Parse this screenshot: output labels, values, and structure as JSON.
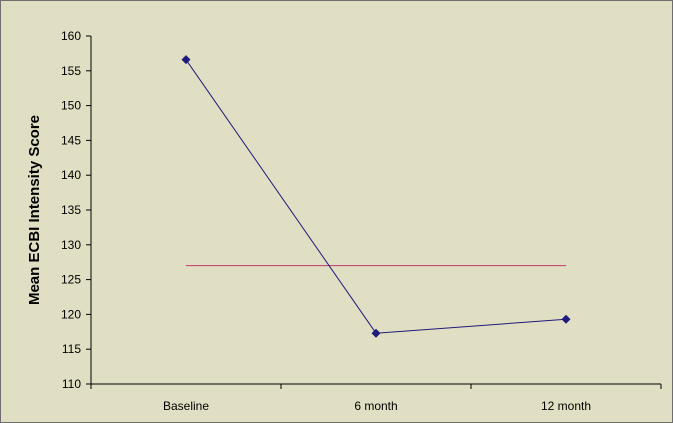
{
  "chart_data": {
    "type": "line",
    "title": "",
    "xlabel": "",
    "ylabel": "Mean ECBI Intensity Score",
    "categories": [
      "Baseline",
      "6 month",
      "12 month"
    ],
    "series": [
      {
        "values": [
          156.6,
          117.3,
          119.3
        ]
      }
    ],
    "reference_line": {
      "value": 127
    },
    "ylim": [
      110,
      160
    ],
    "yticks": [
      110,
      115,
      120,
      125,
      130,
      135,
      140,
      145,
      150,
      155,
      160
    ],
    "grid": false,
    "legend": "none",
    "colors": {
      "plot_background": "#e1dfc3",
      "series_line": "#1f1a7c",
      "series_marker": "#1f1a7c",
      "reference_line": "#c0386e",
      "axis": "#000000",
      "border": "#6e6e6e"
    }
  }
}
